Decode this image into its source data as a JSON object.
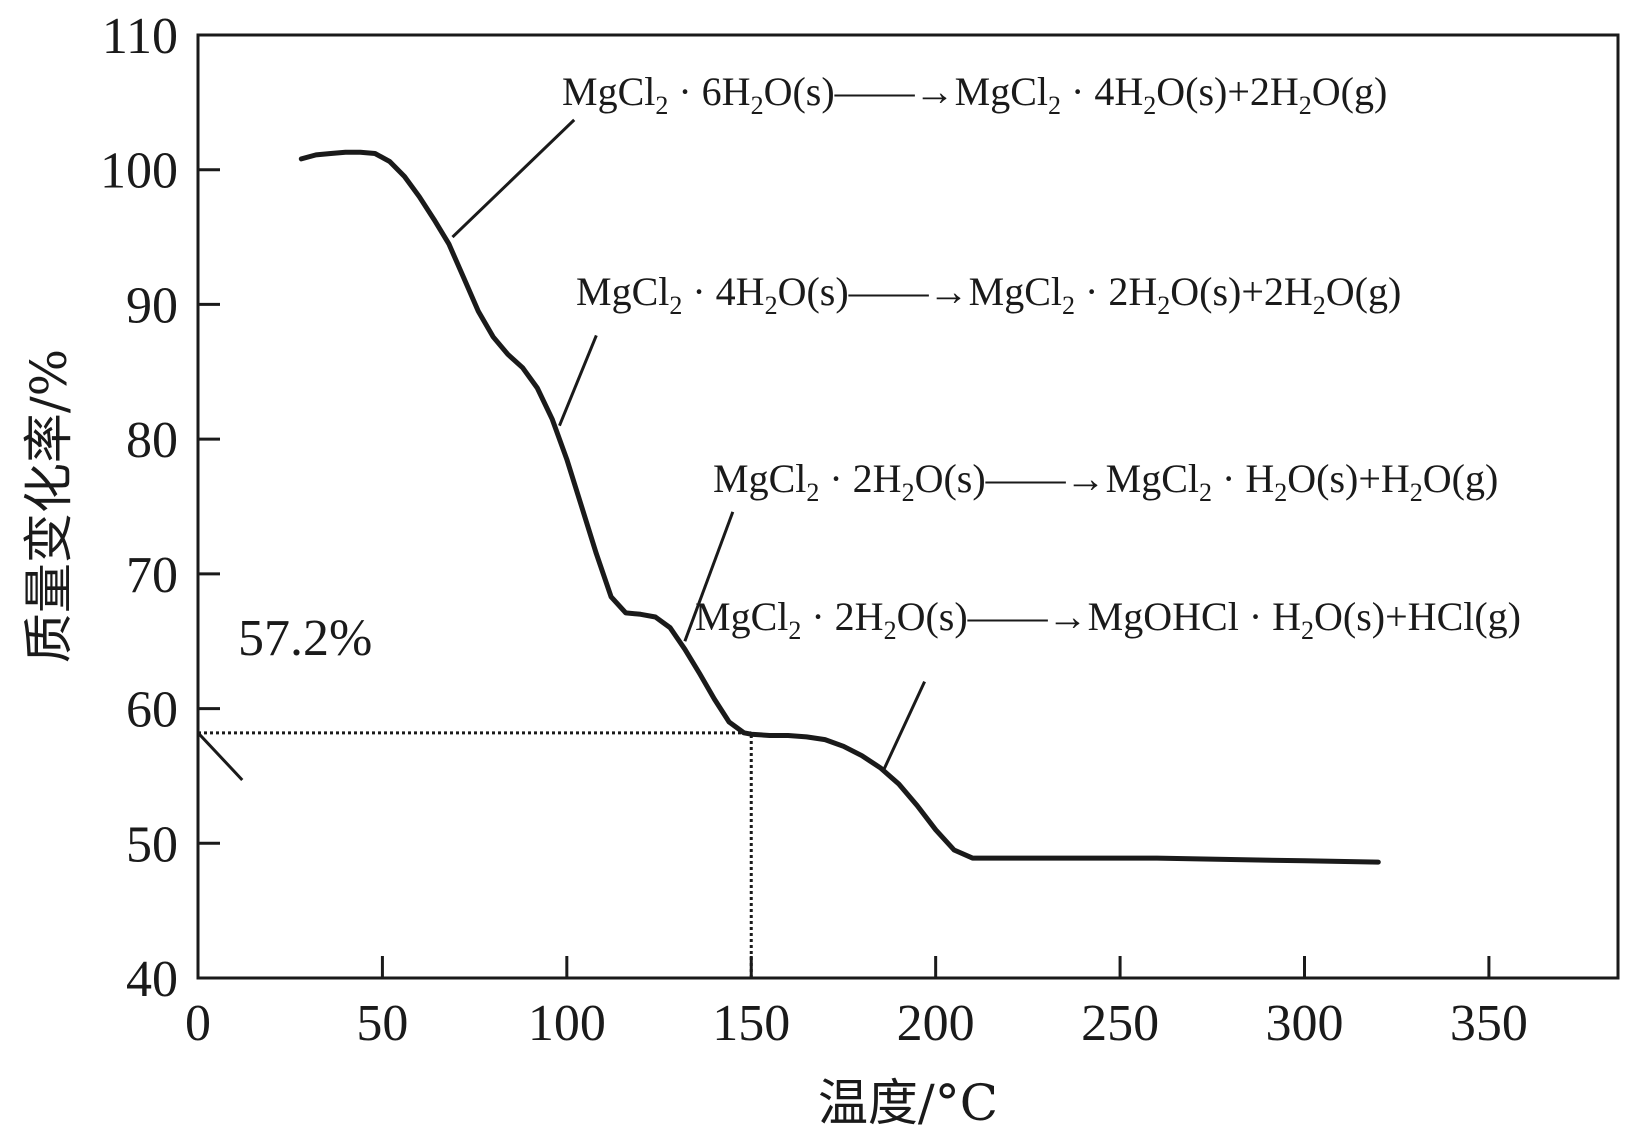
{
  "chart_data": {
    "type": "line",
    "title": "",
    "xlabel": "温度/°C",
    "ylabel": "质量变化率/%",
    "xlim": [
      0,
      385
    ],
    "ylim": [
      40,
      110
    ],
    "x_ticks": [
      0,
      50,
      100,
      150,
      200,
      250,
      300,
      350
    ],
    "y_ticks": [
      40,
      50,
      60,
      70,
      80,
      90,
      100,
      110
    ],
    "grid": false,
    "legend": "none",
    "line_color": "#1a1a1a",
    "series": [
      {
        "x": [
          28,
          32,
          36,
          40,
          44,
          48,
          52,
          56,
          60,
          64,
          68,
          72,
          76,
          80,
          84,
          88,
          92,
          96,
          100,
          104,
          108,
          112,
          116,
          120,
          124,
          128,
          132,
          136,
          140,
          144,
          148,
          150,
          155,
          160,
          165,
          170,
          175,
          180,
          185,
          190,
          195,
          200,
          205,
          210,
          215,
          220,
          240,
          260,
          280,
          300,
          320
        ],
        "y": [
          100.8,
          101.1,
          101.2,
          101.3,
          101.3,
          101.2,
          100.6,
          99.5,
          98.0,
          96.3,
          94.5,
          92.0,
          89.5,
          87.6,
          86.3,
          85.3,
          83.8,
          81.5,
          78.5,
          75.0,
          71.5,
          68.3,
          67.1,
          67.0,
          66.8,
          66.0,
          64.4,
          62.6,
          60.7,
          59.0,
          58.2,
          58.1,
          58.0,
          58.0,
          57.9,
          57.7,
          57.2,
          56.5,
          55.6,
          54.4,
          52.8,
          51.0,
          49.5,
          48.9,
          48.9,
          48.9,
          48.9,
          48.9,
          48.8,
          48.7,
          48.6
        ]
      }
    ],
    "reference_lines": [
      {
        "type": "horizontal",
        "y": 58.2,
        "x_from": 0,
        "x_to": 150,
        "style": "dotted"
      },
      {
        "type": "vertical",
        "x": 150,
        "y_from": 40,
        "y_to": 58.2,
        "style": "dotted"
      }
    ],
    "value_label": "57.2%",
    "annotations": [
      {
        "reactant": "MgCl",
        "reactant_sub": "2",
        "reactant_rest": " · 6H",
        "reactant_rest_sub": "2",
        "reactant_tail": "O(s)",
        "product": "MgCl",
        "product_sub": "2",
        "product_rest": " · 4H",
        "product_rest_sub": "2",
        "product_tail": "O(s)+2H",
        "gas_sub": "2",
        "gas_tail": "O(g)",
        "point": [
          69,
          95.0
        ],
        "leader_to": [
          102,
          103.7
        ]
      },
      {
        "reactant": "MgCl",
        "reactant_sub": "2",
        "reactant_rest": " · 4H",
        "reactant_rest_sub": "2",
        "reactant_tail": "O(s)",
        "product": "MgCl",
        "product_sub": "2",
        "product_rest": " · 2H",
        "product_rest_sub": "2",
        "product_tail": "O(s)+2H",
        "gas_sub": "2",
        "gas_tail": "O(g)",
        "point": [
          98,
          81.0
        ],
        "leader_to": [
          108,
          87.7
        ]
      },
      {
        "reactant": "MgCl",
        "reactant_sub": "2",
        "reactant_rest": " · 2H",
        "reactant_rest_sub": "2",
        "reactant_tail": "O(s)",
        "product": "MgCl",
        "product_sub": "2",
        "product_rest": " · H",
        "product_rest_sub": "2",
        "product_tail": "O(s)+H",
        "gas_sub": "2",
        "gas_tail": "O(g)",
        "point": [
          132,
          65.0
        ],
        "leader_to": [
          145,
          74.6
        ]
      },
      {
        "reactant": "MgCl",
        "reactant_sub": "2",
        "reactant_rest": " · 2H",
        "reactant_rest_sub": "2",
        "reactant_tail": "O(s)",
        "product": "MgOHCl",
        "product_sub": "",
        "product_rest": " · H",
        "product_rest_sub": "2",
        "product_tail": "O(s)+HCl(g)",
        "gas_sub": "",
        "gas_tail": "",
        "point": [
          186,
          55.5
        ],
        "leader_to": [
          197,
          62.0
        ]
      }
    ]
  }
}
